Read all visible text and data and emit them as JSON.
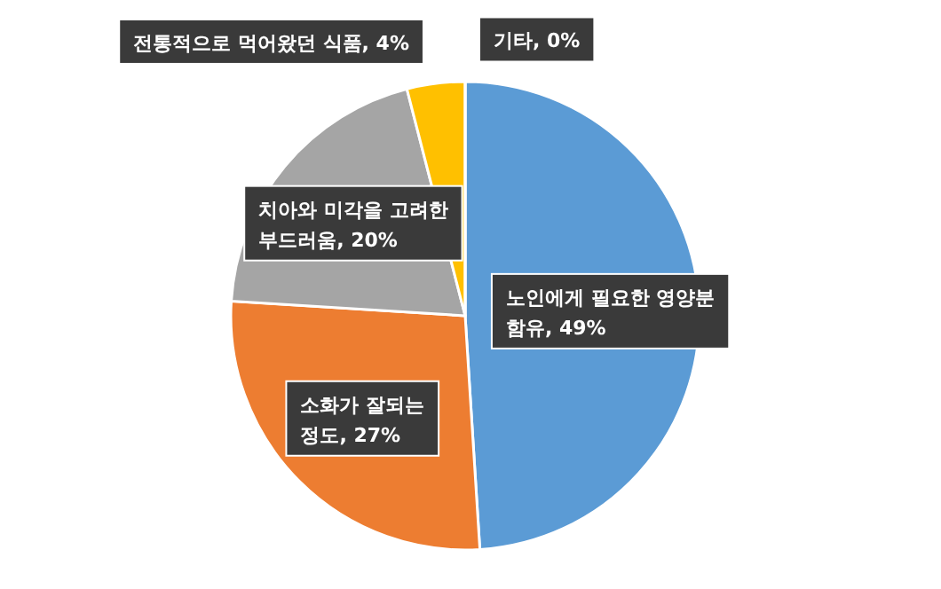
{
  "chart_data": {
    "type": "pie",
    "categories": [
      "노인에게 필요한 영양분 함유",
      "소화가 잘되는 정도",
      "치아와 미각을 고려한 부드러움",
      "전통적으로 먹어왔던 식품",
      "기타"
    ],
    "values": [
      49,
      27,
      20,
      4,
      0
    ],
    "colors": [
      "#5b9bd5",
      "#ed7d31",
      "#a5a5a5",
      "#ffc000",
      "#4472c4"
    ],
    "value_labels": [
      ", 49%",
      ", 27%",
      ", 20%",
      ", 4%",
      ", 0%"
    ]
  }
}
